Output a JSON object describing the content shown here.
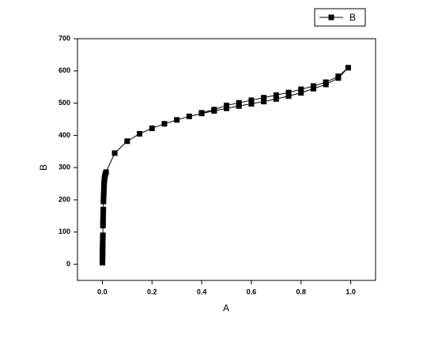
{
  "chart_data": {
    "type": "line",
    "x_label": "A",
    "y_label": "B",
    "x": [
      0.0005,
      0.0006,
      0.0007,
      0.0008,
      0.0009,
      0.001,
      0.0012,
      0.0014,
      0.0016,
      0.0018,
      0.002,
      0.0022,
      0.0025,
      0.0028,
      0.003,
      0.0033,
      0.0036,
      0.004,
      0.0045,
      0.005,
      0.0055,
      0.006,
      0.0065,
      0.007,
      0.0075,
      0.008,
      0.009,
      0.01,
      0.012,
      0.015,
      0.05,
      0.1,
      0.15,
      0.2,
      0.25,
      0.3,
      0.35,
      0.4,
      0.45,
      0.5,
      0.55,
      0.6,
      0.65,
      0.7,
      0.75,
      0.8,
      0.85,
      0.9,
      0.95,
      0.99,
      0.95,
      0.9,
      0.85,
      0.8,
      0.75,
      0.7,
      0.65,
      0.6,
      0.55,
      0.5,
      0.45,
      0.4
    ],
    "series": [
      {
        "name": "B",
        "color": "#000000",
        "values": [
          5,
          12,
          20,
          28,
          36,
          44,
          52,
          60,
          68,
          76,
          84,
          90,
          120,
          130,
          140,
          150,
          160,
          170,
          195,
          205,
          215,
          225,
          235,
          245,
          252,
          260,
          266,
          272,
          280,
          286,
          345,
          382,
          405,
          422,
          436,
          448,
          459,
          468,
          476,
          484,
          491,
          498,
          505,
          513,
          522,
          532,
          545,
          558,
          578,
          610,
          583,
          565,
          553,
          543,
          533,
          525,
          517,
          509,
          501,
          493,
          480,
          470
        ]
      }
    ],
    "xlim": [
      -0.1,
      1.1
    ],
    "ylim": [
      -50,
      700
    ],
    "xticks": [
      {
        "value": 0,
        "label": "0.0"
      },
      0.2,
      0.4,
      0.6,
      0.8,
      {
        "value": 1,
        "label": "1.0"
      }
    ],
    "yticks": [
      0,
      100,
      200,
      300,
      400,
      500,
      600,
      700
    ],
    "legend": "upper right"
  }
}
